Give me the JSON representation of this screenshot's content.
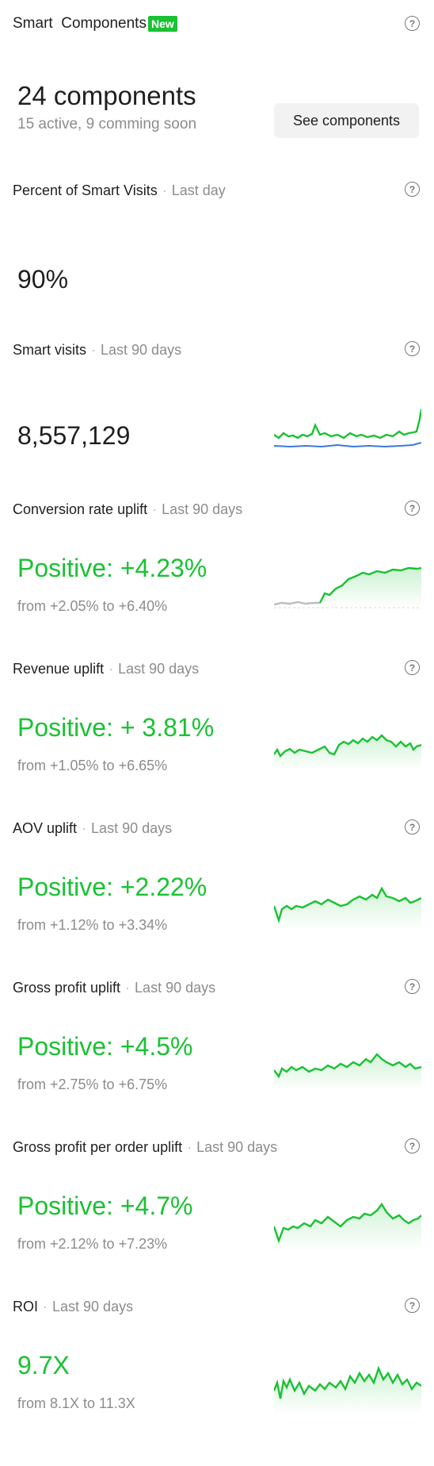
{
  "header": {
    "title": "Smart  Components",
    "badge": "New"
  },
  "summary": {
    "count": "24 components",
    "sub": "15 active, 9 comming soon",
    "button_label": "See components"
  },
  "help_glyph": "?",
  "sections": [
    {
      "title": "Percent of Smart Visits",
      "period": "Last day",
      "value": "90%"
    },
    {
      "title": "Smart visits",
      "period": "Last 90 days",
      "value": "8,557,129"
    },
    {
      "title": "Conversion rate uplift",
      "period": "Last 90 days",
      "value": "Positive: +4.23%",
      "range": "from +2.05% to +6.40%"
    },
    {
      "title": "Revenue uplift",
      "period": "Last 90 days",
      "value": "Positive: + 3.81%",
      "range": "from +1.05% to +6.65%"
    },
    {
      "title": "AOV uplift",
      "period": "Last 90 days",
      "value": "Positive: +2.22%",
      "range": "from +1.12% to +3.34%"
    },
    {
      "title": "Gross profit uplift",
      "period": "Last 90 days",
      "value": "Positive: +4.5%",
      "range": "from +2.75% to +6.75%"
    },
    {
      "title": "Gross profit per order uplift",
      "period": "Last 90 days",
      "value": "Positive: +4.7%",
      "range": "from +2.12% to +7.23%"
    },
    {
      "title": "ROI",
      "period": "Last 90 days",
      "value": "9.7X",
      "range": "from 8.1X to 11.3X"
    }
  ],
  "colors": {
    "positive": "#19c232",
    "blue": "#3a78e0",
    "muted_line": "#bdbdbd"
  }
}
